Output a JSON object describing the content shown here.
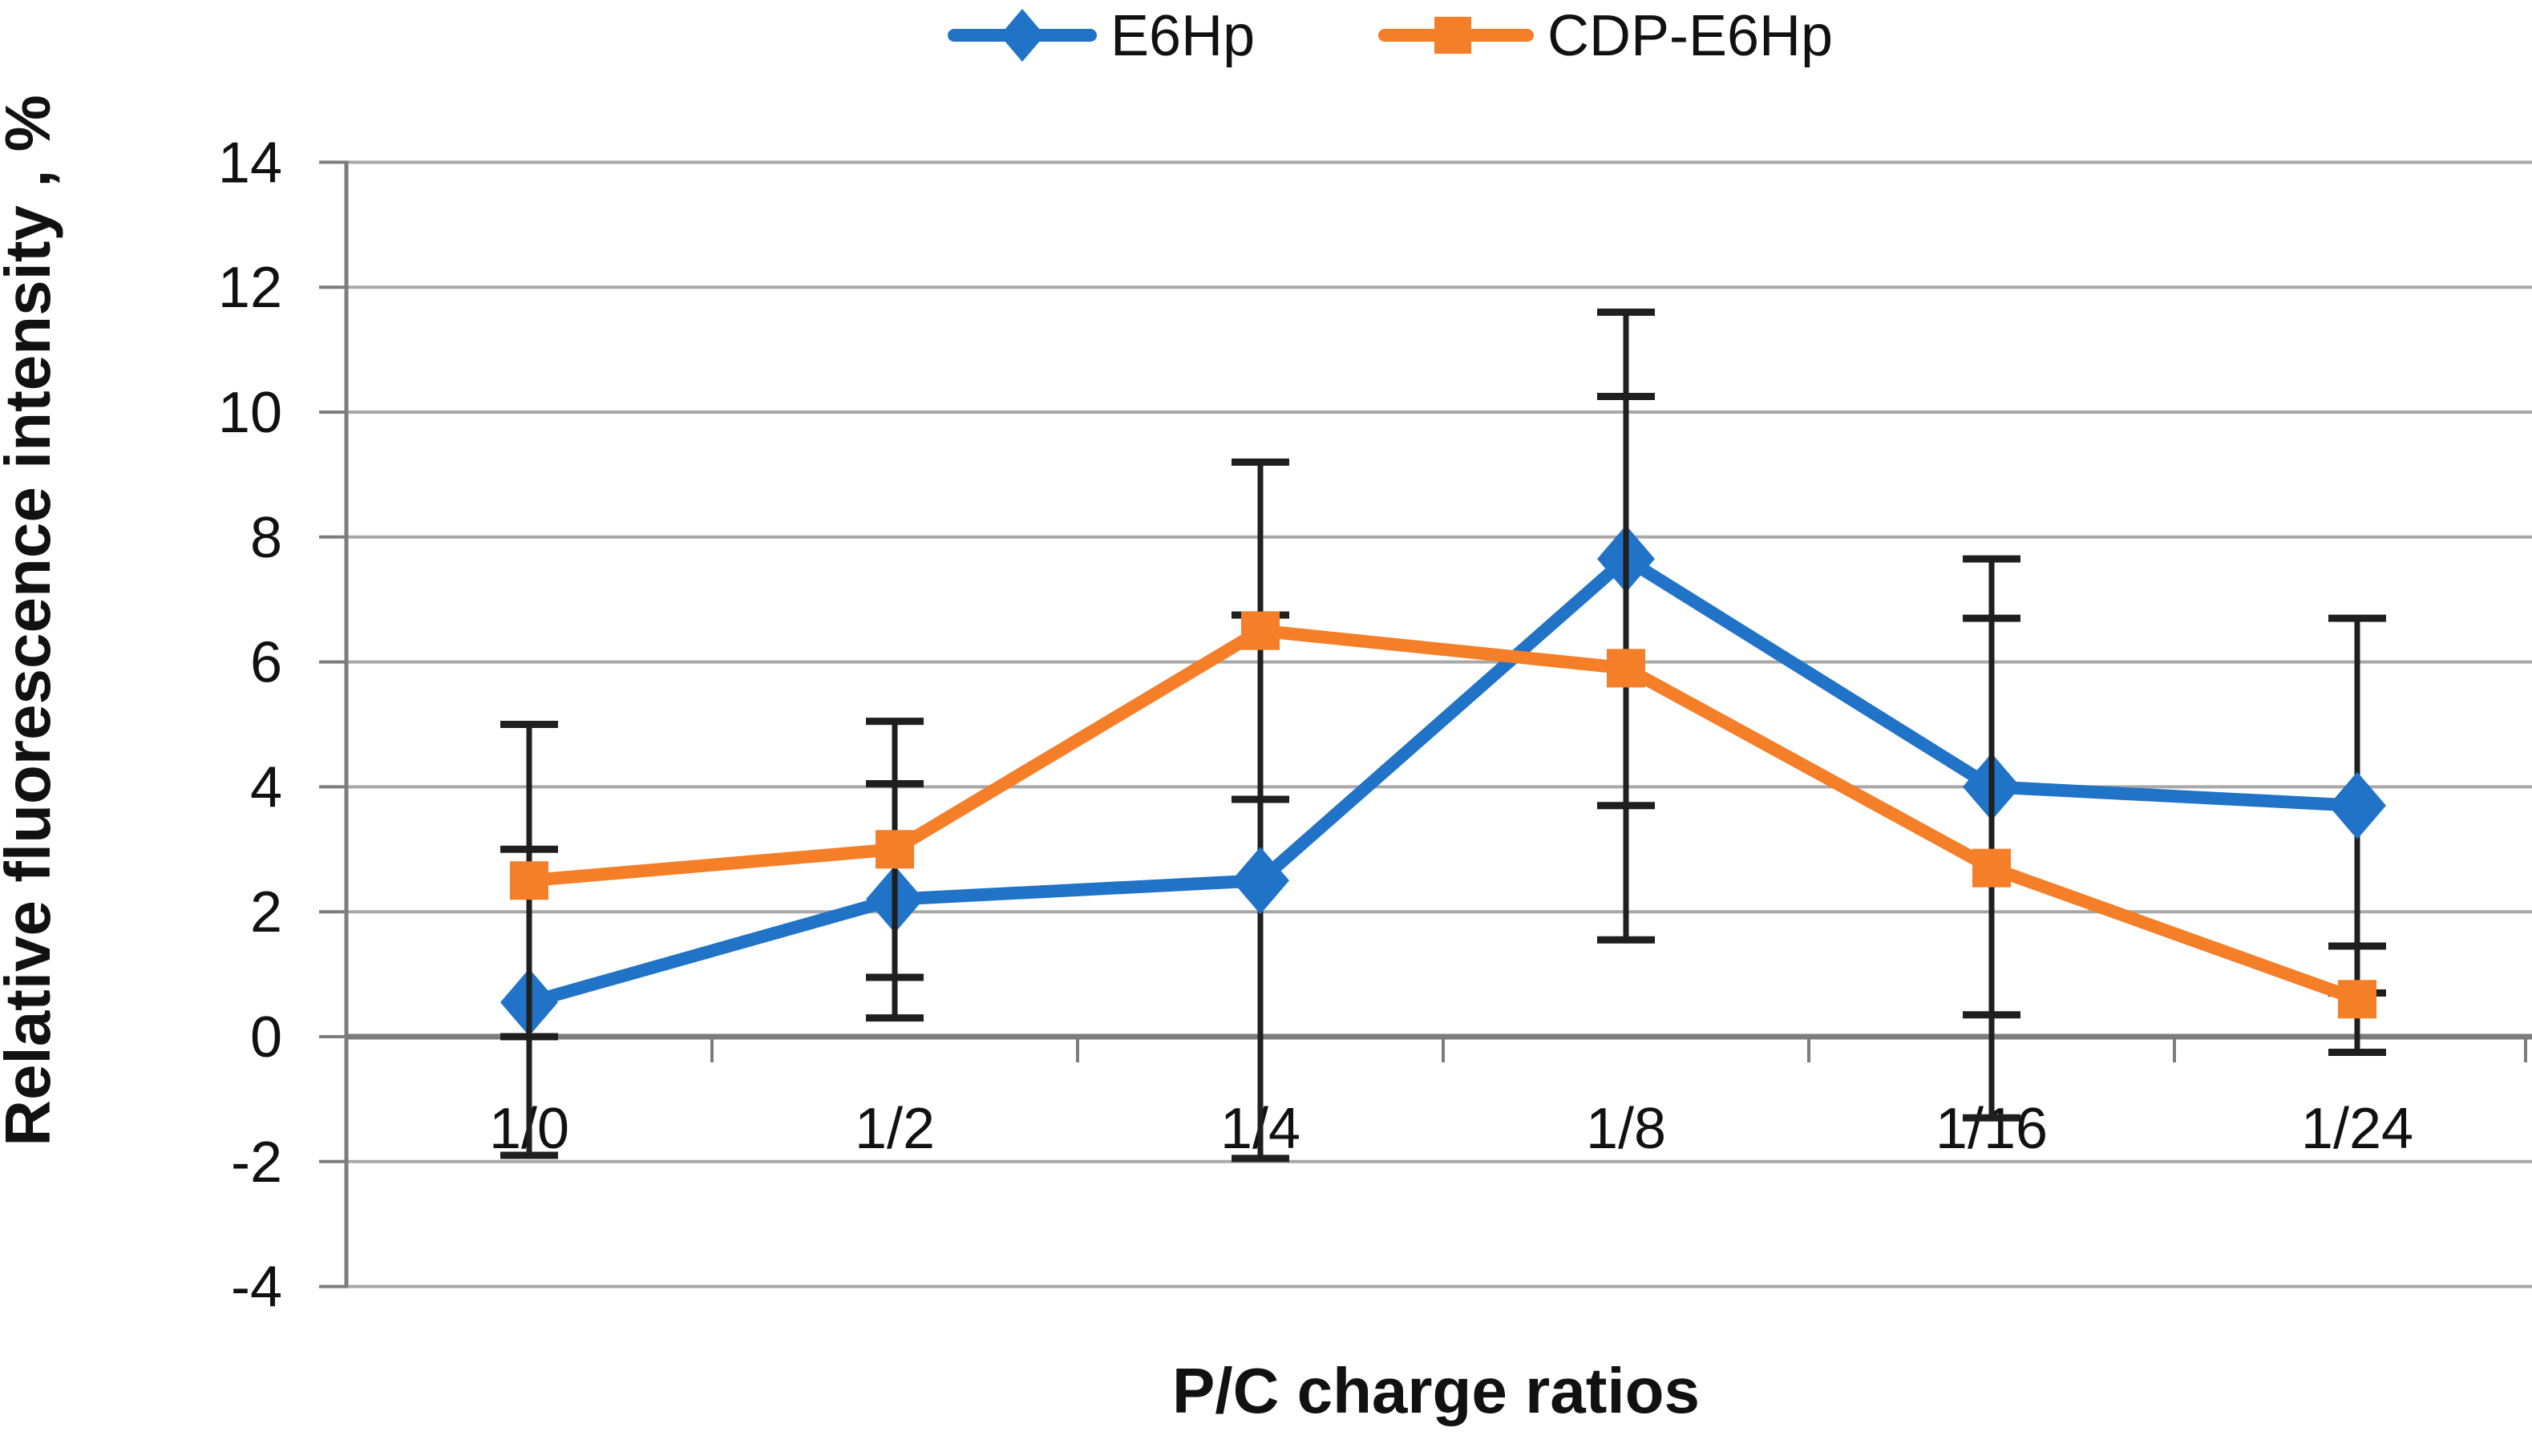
{
  "figure": {
    "background": "#ffffff"
  },
  "legend": {
    "items": [
      {
        "label": "E6Hp",
        "marker": "diamond-marker-icon",
        "color": "#2073C6"
      },
      {
        "label": "CDP-E6Hp",
        "marker": "square-marker-icon",
        "color": "#F57E28"
      }
    ],
    "position": "top-center"
  },
  "chart_data": {
    "type": "line",
    "title": "",
    "xlabel": "P/C charge ratios",
    "ylabel": "Relative fluorescence intensity , %",
    "categories": [
      "1/0",
      "1/2",
      "1/4",
      "1/8",
      "1/16",
      "1/24"
    ],
    "yticks": [
      "14",
      "12",
      "10",
      "8",
      "6",
      "4",
      "2",
      "0",
      "-2",
      "-4"
    ],
    "ytick_values": [
      14,
      12,
      10,
      8,
      6,
      4,
      2,
      0,
      -2,
      -4
    ],
    "ylim": [
      -4,
      14
    ],
    "grid": true,
    "legend_position": "top-center",
    "series": [
      {
        "name": "E6Hp",
        "color": "#2073C6",
        "marker": "diamond",
        "values": [
          0.55,
          2.2,
          2.5,
          7.65,
          4.0,
          3.7
        ],
        "error_hi": [
          3.0,
          4.05,
          6.75,
          11.6,
          7.65,
          6.7
        ],
        "error_lo": [
          -1.9,
          0.3,
          -1.95,
          3.7,
          0.35,
          0.7
        ]
      },
      {
        "name": "CDP-E6Hp",
        "color": "#F57E28",
        "marker": "square",
        "values": [
          2.5,
          3.0,
          6.5,
          5.9,
          2.7,
          0.6
        ],
        "error_hi": [
          5.0,
          5.05,
          9.2,
          10.25,
          6.7,
          1.45
        ],
        "error_lo": [
          0.0,
          0.95,
          3.8,
          1.55,
          -1.3,
          -0.25
        ]
      }
    ],
    "style": {
      "grid_color": "#A8A8A8",
      "axis_color": "#7C7C7C",
      "error_bar_color": "#1F1F1F",
      "text_color": "#111111"
    }
  }
}
